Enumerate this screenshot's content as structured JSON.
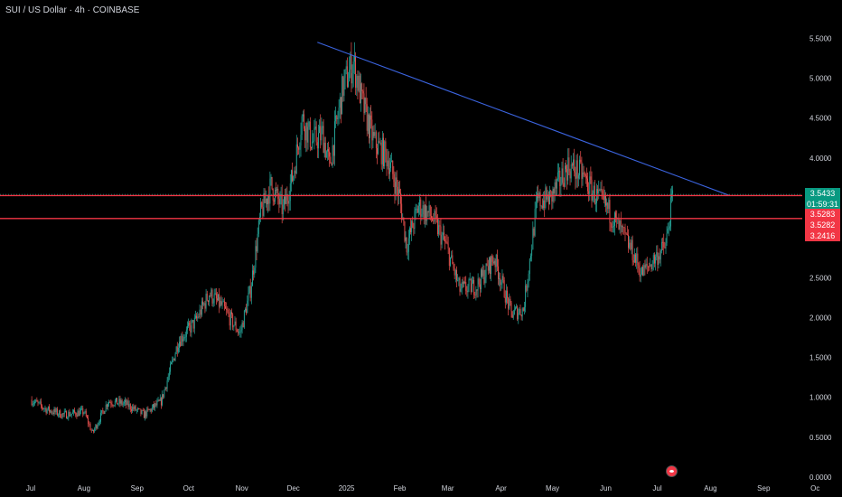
{
  "header": {
    "title": "SUI / US Dollar · 4h · COINBASE"
  },
  "colors": {
    "background": "#000000",
    "up": "#26a69a",
    "down": "#ef5350",
    "trendline": "#3b64e0",
    "level": "#f23645",
    "last_price_tag": "#089981"
  },
  "price_tags": {
    "last_price": "3.5433",
    "countdown": "01:59:31",
    "level_upper": "3.5283",
    "level_lower_a": "3.5282",
    "level_lower_b": "3.2416"
  },
  "icons": {
    "event_marker": "earnings-icon"
  },
  "chart_data": {
    "type": "candlestick",
    "title": "SUI / US Dollar · 4h · COINBASE",
    "ylim": [
      0,
      5.8
    ],
    "y_ticks": [
      "0.0000",
      "0.5000",
      "1.0000",
      "1.5000",
      "2.0000",
      "2.5000",
      "3.0000",
      "3.5000",
      "4.0000",
      "4.5000",
      "5.0000",
      "5.5000"
    ],
    "x_ticks": [
      "Jul",
      "Aug",
      "Sep",
      "Oct",
      "Nov",
      "Dec",
      "2025",
      "Feb",
      "Mar",
      "Apr",
      "May",
      "Jun",
      "Jul",
      "Aug",
      "Sep",
      "Oc"
    ],
    "grid": false,
    "series": [
      {
        "values": [
          [
            "2024-07-01",
            0.97
          ],
          [
            "2024-07-10",
            0.85
          ],
          [
            "2024-07-20",
            0.78
          ],
          [
            "2024-08-01",
            0.82
          ],
          [
            "2024-08-06",
            0.55
          ],
          [
            "2024-08-15",
            0.95
          ],
          [
            "2024-08-25",
            0.92
          ],
          [
            "2024-09-05",
            0.78
          ],
          [
            "2024-09-15",
            0.95
          ],
          [
            "2024-09-25",
            1.7
          ],
          [
            "2024-10-05",
            1.95
          ],
          [
            "2024-10-13",
            2.3
          ],
          [
            "2024-10-20",
            2.15
          ],
          [
            "2024-10-31",
            1.8
          ],
          [
            "2024-11-06",
            2.35
          ],
          [
            "2024-11-12",
            3.3
          ],
          [
            "2024-11-18",
            3.65
          ],
          [
            "2024-11-25",
            3.35
          ],
          [
            "2024-12-01",
            3.8
          ],
          [
            "2024-12-06",
            4.5
          ],
          [
            "2024-12-12",
            4.2
          ],
          [
            "2024-12-18",
            4.3
          ],
          [
            "2024-12-22",
            3.9
          ],
          [
            "2024-12-30",
            4.9
          ],
          [
            "2025-01-05",
            5.2
          ],
          [
            "2025-01-10",
            4.7
          ],
          [
            "2025-01-17",
            4.2
          ],
          [
            "2025-01-25",
            4.0
          ],
          [
            "2025-02-01",
            3.5
          ],
          [
            "2025-02-05",
            2.9
          ],
          [
            "2025-02-12",
            3.4
          ],
          [
            "2025-02-20",
            3.25
          ],
          [
            "2025-02-28",
            2.9
          ],
          [
            "2025-03-08",
            2.35
          ],
          [
            "2025-03-18",
            2.4
          ],
          [
            "2025-03-28",
            2.75
          ],
          [
            "2025-04-07",
            2.05
          ],
          [
            "2025-04-14",
            2.1
          ],
          [
            "2025-04-22",
            3.45
          ],
          [
            "2025-04-30",
            3.5
          ],
          [
            "2025-05-10",
            3.9
          ],
          [
            "2025-05-18",
            3.8
          ],
          [
            "2025-05-25",
            3.55
          ],
          [
            "2025-06-01",
            3.4
          ],
          [
            "2025-06-08",
            3.15
          ],
          [
            "2025-06-16",
            2.85
          ],
          [
            "2025-06-22",
            2.55
          ],
          [
            "2025-06-30",
            2.75
          ],
          [
            "2025-07-06",
            2.9
          ],
          [
            "2025-07-10",
            3.54
          ]
        ]
      }
    ],
    "trendline": {
      "from": [
        "2024-12-15",
        5.45
      ],
      "to": [
        "2025-08-12",
        3.53
      ]
    },
    "horizontal_levels": [
      3.5283,
      3.2416
    ],
    "last_price": 3.5433
  }
}
